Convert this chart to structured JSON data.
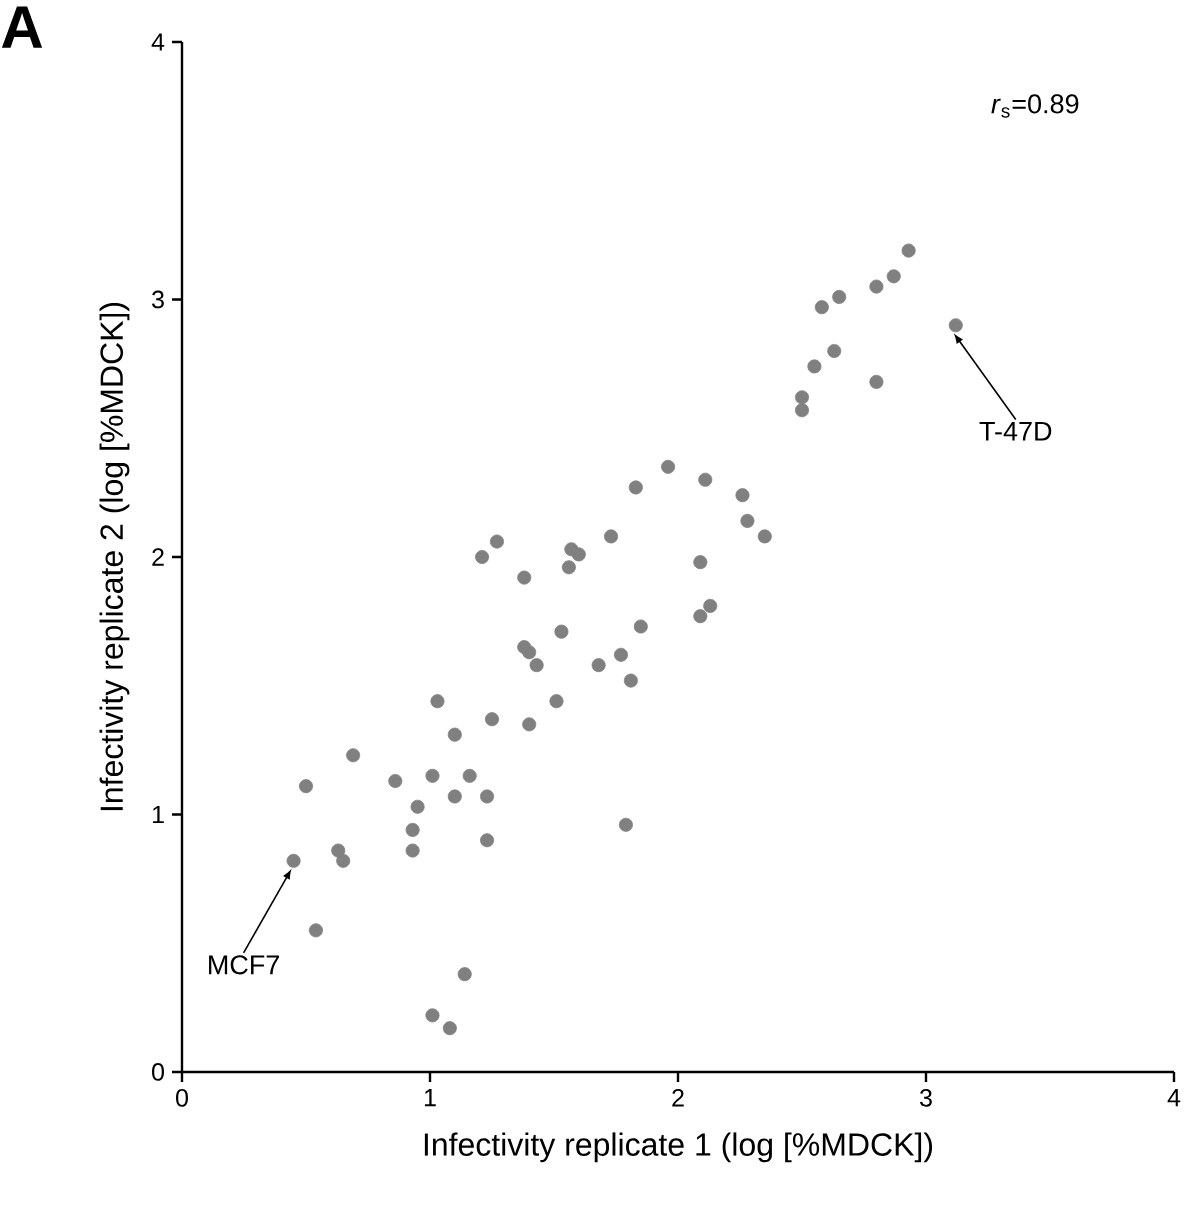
{
  "chart_data": {
    "type": "scatter",
    "xlabel": "Infectivity replicate 1 (log [%MDCK])",
    "ylabel": "Infectivity replicate 2 (log [%MDCK])",
    "xlim": [
      0,
      4
    ],
    "ylim": [
      0,
      4
    ],
    "xticks": [
      0,
      1,
      2,
      3,
      4
    ],
    "yticks": [
      0,
      1,
      2,
      3,
      4
    ],
    "grid": false,
    "series": [
      {
        "color": "#808080",
        "x": [
          2.93,
          2.87,
          2.8,
          2.65,
          2.58,
          3.12,
          2.63,
          2.55,
          2.8,
          2.5,
          2.5,
          1.96,
          1.83,
          2.11,
          2.26,
          2.28,
          2.35,
          1.73,
          1.27,
          1.21,
          1.57,
          1.6,
          2.09,
          1.38,
          1.56,
          2.13,
          2.09,
          1.85,
          1.53,
          1.38,
          1.4,
          1.43,
          1.68,
          1.77,
          1.81,
          1.51,
          1.03,
          1.25,
          1.4,
          1.1,
          0.69,
          0.86,
          1.01,
          1.16,
          0.5,
          1.1,
          1.23,
          0.95,
          0.93,
          1.79,
          0.93,
          1.23,
          0.63,
          0.65,
          0.45,
          0.54,
          1.14,
          1.01,
          1.08
        ],
        "values": [
          3.19,
          3.09,
          3.05,
          3.01,
          2.97,
          2.9,
          2.8,
          2.74,
          2.68,
          2.62,
          2.57,
          2.35,
          2.27,
          2.3,
          2.24,
          2.14,
          2.08,
          2.08,
          2.06,
          2.0,
          2.03,
          2.01,
          1.98,
          1.92,
          1.96,
          1.81,
          1.77,
          1.73,
          1.71,
          1.65,
          1.63,
          1.58,
          1.58,
          1.62,
          1.52,
          1.44,
          1.44,
          1.37,
          1.35,
          1.31,
          1.23,
          1.13,
          1.15,
          1.15,
          1.11,
          1.07,
          1.07,
          1.03,
          0.94,
          0.96,
          0.86,
          0.9,
          0.86,
          0.82,
          0.82,
          0.55,
          0.38,
          0.22,
          0.17
        ]
      }
    ],
    "annotations": [
      "A",
      "*r*$_{s}$=0.89",
      {
        "text": "T-47D",
        "x": 3.12,
        "y": 2.9
      },
      {
        "text": "MCF7",
        "x": 0.45,
        "y": 0.82
      }
    ]
  }
}
